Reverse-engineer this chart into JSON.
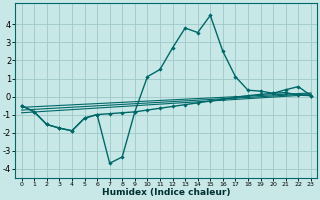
{
  "xlabel": "Humidex (Indice chaleur)",
  "xlim": [
    -0.5,
    23.5
  ],
  "ylim": [
    -4.5,
    5.2
  ],
  "yticks": [
    -4,
    -3,
    -2,
    -1,
    0,
    1,
    2,
    3,
    4
  ],
  "xticks": [
    0,
    1,
    2,
    3,
    4,
    5,
    6,
    7,
    8,
    9,
    10,
    11,
    12,
    13,
    14,
    15,
    16,
    17,
    18,
    19,
    20,
    21,
    22,
    23
  ],
  "background_color": "#c8e8e8",
  "grid_color": "#a0c8c8",
  "line_color": "#006868",
  "curve_up": {
    "x": [
      0,
      1,
      2,
      3,
      4,
      5,
      6,
      7,
      8,
      9,
      10,
      11,
      12,
      13,
      14,
      15,
      16,
      17,
      18,
      19,
      20,
      21,
      22,
      23
    ],
    "y": [
      -0.5,
      -0.85,
      -1.55,
      -1.75,
      -1.9,
      -1.2,
      -1.0,
      -0.95,
      -0.9,
      -0.85,
      1.1,
      1.5,
      2.7,
      3.8,
      3.55,
      4.5,
      2.5,
      1.1,
      0.35,
      0.3,
      0.18,
      0.38,
      0.55,
      0.05
    ]
  },
  "curve_down": {
    "x": [
      0,
      1,
      2,
      3,
      4,
      5,
      6,
      7,
      8,
      9,
      10,
      11,
      12,
      13,
      14,
      15,
      16,
      17,
      18,
      19,
      20,
      21,
      22,
      23
    ],
    "y": [
      -0.5,
      -0.85,
      -1.55,
      -1.75,
      -1.9,
      -1.2,
      -1.0,
      -3.7,
      -3.35,
      -0.85,
      -0.75,
      -0.65,
      -0.55,
      -0.45,
      -0.35,
      -0.25,
      -0.15,
      -0.05,
      0.05,
      0.12,
      0.18,
      0.22,
      0.08,
      0.05
    ]
  },
  "ref_lines": [
    {
      "x": [
        0,
        23
      ],
      "y": [
        -0.9,
        0.1
      ]
    },
    {
      "x": [
        0,
        23
      ],
      "y": [
        -0.75,
        0.15
      ]
    },
    {
      "x": [
        0,
        23
      ],
      "y": [
        -0.6,
        0.2
      ]
    }
  ]
}
